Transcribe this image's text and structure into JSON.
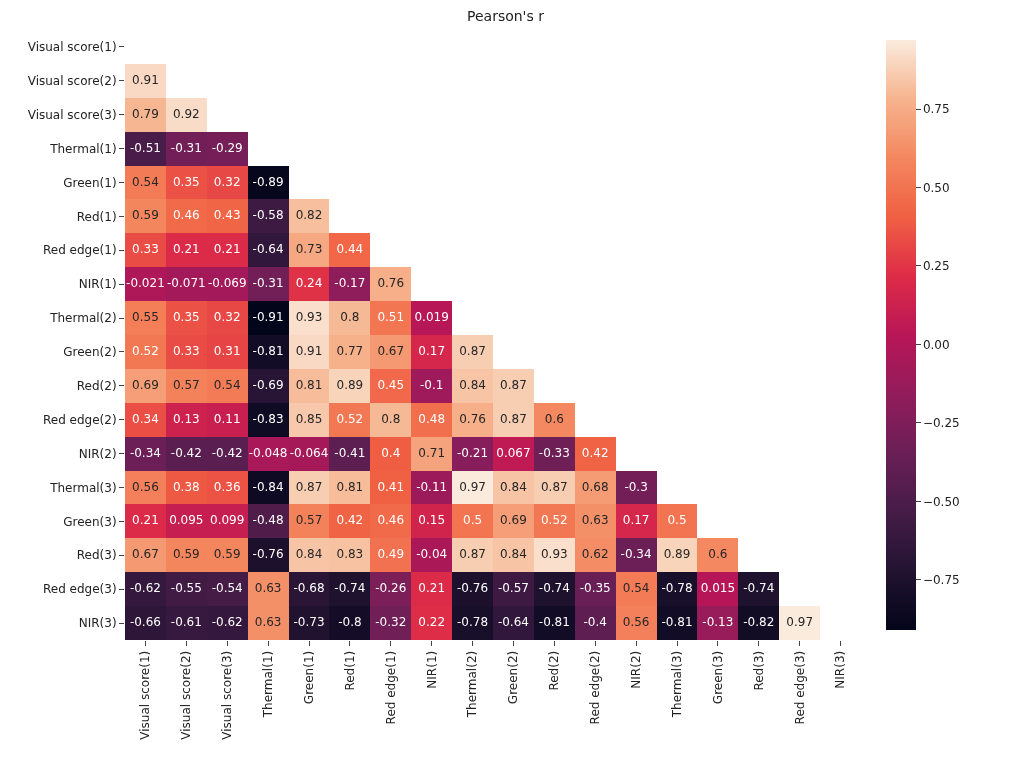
{
  "chart_data": {
    "type": "heatmap",
    "title": "Pearson's r",
    "categories": [
      "Visual score(1)",
      "Visual score(2)",
      "Visual score(3)",
      "Thermal(1)",
      "Green(1)",
      "Red(1)",
      "Red edge(1)",
      "NIR(1)",
      "Thermal(2)",
      "Green(2)",
      "Red(2)",
      "Red edge(2)",
      "NIR(2)",
      "Thermal(3)",
      "Green(3)",
      "Red(3)",
      "Red edge(3)",
      "NIR(3)"
    ],
    "y_categories": [
      "Visual score(1)",
      "Visual score(2)",
      "Visual score(3)",
      "Thermal(1)",
      "Green(1)",
      "Red(1)",
      "Red edge(1)",
      "NIR(1)",
      "Thermal(2)",
      "Green(2)",
      "Red(2)",
      "Red edge(2)",
      "NIR(2)",
      "Thermal(3)",
      "Green(3)",
      "Red(3)",
      "Red edge(3)",
      "NIR(3)"
    ],
    "cells": [
      [
        null,
        null,
        null,
        null,
        null,
        null,
        null,
        null,
        null,
        null,
        null,
        null,
        null,
        null,
        null,
        null,
        null,
        null
      ],
      [
        0.91,
        null,
        null,
        null,
        null,
        null,
        null,
        null,
        null,
        null,
        null,
        null,
        null,
        null,
        null,
        null,
        null,
        null
      ],
      [
        0.79,
        0.92,
        null,
        null,
        null,
        null,
        null,
        null,
        null,
        null,
        null,
        null,
        null,
        null,
        null,
        null,
        null,
        null
      ],
      [
        -0.51,
        -0.31,
        -0.29,
        null,
        null,
        null,
        null,
        null,
        null,
        null,
        null,
        null,
        null,
        null,
        null,
        null,
        null,
        null
      ],
      [
        0.54,
        0.35,
        0.32,
        -0.89,
        null,
        null,
        null,
        null,
        null,
        null,
        null,
        null,
        null,
        null,
        null,
        null,
        null,
        null
      ],
      [
        0.59,
        0.46,
        0.43,
        -0.58,
        0.82,
        null,
        null,
        null,
        null,
        null,
        null,
        null,
        null,
        null,
        null,
        null,
        null,
        null
      ],
      [
        0.33,
        0.21,
        0.21,
        -0.64,
        0.73,
        0.44,
        null,
        null,
        null,
        null,
        null,
        null,
        null,
        null,
        null,
        null,
        null,
        null
      ],
      [
        -0.021,
        -0.071,
        -0.069,
        -0.31,
        0.24,
        -0.17,
        0.76,
        null,
        null,
        null,
        null,
        null,
        null,
        null,
        null,
        null,
        null,
        null
      ],
      [
        0.55,
        0.35,
        0.32,
        -0.91,
        0.93,
        0.8,
        0.51,
        0.019,
        null,
        null,
        null,
        null,
        null,
        null,
        null,
        null,
        null,
        null
      ],
      [
        0.52,
        0.33,
        0.31,
        -0.81,
        0.91,
        0.77,
        0.67,
        0.17,
        0.87,
        null,
        null,
        null,
        null,
        null,
        null,
        null,
        null,
        null
      ],
      [
        0.69,
        0.57,
        0.54,
        -0.69,
        0.81,
        0.89,
        0.45,
        -0.1,
        0.84,
        0.87,
        null,
        null,
        null,
        null,
        null,
        null,
        null,
        null
      ],
      [
        0.34,
        0.13,
        0.11,
        -0.83,
        0.85,
        0.52,
        0.8,
        0.48,
        0.76,
        0.87,
        0.6,
        null,
        null,
        null,
        null,
        null,
        null,
        null
      ],
      [
        -0.34,
        -0.42,
        -0.42,
        -0.048,
        -0.064,
        -0.41,
        0.4,
        0.71,
        -0.21,
        0.067,
        -0.33,
        0.42,
        null,
        null,
        null,
        null,
        null,
        null
      ],
      [
        0.56,
        0.38,
        0.36,
        -0.84,
        0.87,
        0.81,
        0.41,
        -0.11,
        0.97,
        0.84,
        0.87,
        0.68,
        -0.3,
        null,
        null,
        null,
        null,
        null
      ],
      [
        0.21,
        0.095,
        0.099,
        -0.48,
        0.57,
        0.42,
        0.46,
        0.15,
        0.5,
        0.69,
        0.52,
        0.63,
        0.17,
        0.5,
        null,
        null,
        null,
        null
      ],
      [
        0.67,
        0.59,
        0.59,
        -0.76,
        0.84,
        0.83,
        0.49,
        -0.04,
        0.87,
        0.84,
        0.93,
        0.62,
        -0.34,
        0.89,
        0.6,
        null,
        null,
        null
      ],
      [
        -0.62,
        -0.55,
        -0.54,
        0.63,
        -0.68,
        -0.74,
        -0.26,
        0.21,
        -0.76,
        -0.57,
        -0.74,
        -0.35,
        0.54,
        -0.78,
        0.015,
        -0.74,
        null,
        null
      ],
      [
        -0.66,
        -0.61,
        -0.62,
        0.63,
        -0.73,
        -0.8,
        -0.32,
        0.22,
        -0.78,
        -0.64,
        -0.81,
        -0.4,
        0.56,
        -0.81,
        -0.13,
        -0.82,
        0.97,
        null
      ]
    ],
    "data_labels": true,
    "clim": [
      -0.91,
      0.97
    ],
    "cticks": [
      {
        "value": -0.75,
        "label": "−0.75"
      },
      {
        "value": -0.5,
        "label": "−0.50"
      },
      {
        "value": -0.25,
        "label": "−0.25"
      },
      {
        "value": 0,
        "label": "0.00"
      },
      {
        "value": 0.25,
        "label": "0.25"
      },
      {
        "value": 0.5,
        "label": "0.50"
      },
      {
        "value": 0.75,
        "label": "0.75"
      }
    ]
  }
}
